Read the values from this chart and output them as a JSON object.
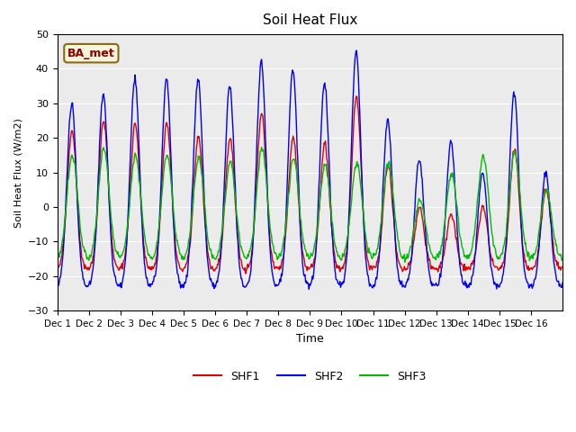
{
  "title": "Soil Heat Flux",
  "ylabel": "Soil Heat Flux (W/m2)",
  "xlabel": "Time",
  "ylim": [
    -30,
    50
  ],
  "yticks": [
    -30,
    -20,
    -10,
    0,
    10,
    20,
    30,
    40,
    50
  ],
  "xtick_labels": [
    "Dec 1",
    "Dec 2",
    "Dec 3",
    "Dec 4",
    "Dec 5",
    "Dec 6",
    "Dec 7",
    "Dec 8",
    "Dec 9",
    "Dec 10",
    "Dec 11",
    "Dec 12",
    "Dec 13",
    "Dec 14",
    "Dec 15",
    "Dec 16"
  ],
  "xtick_positions": [
    0,
    1,
    2,
    3,
    4,
    5,
    6,
    7,
    8,
    9,
    10,
    11,
    12,
    13,
    14,
    15
  ],
  "line_colors": {
    "SHF1": "#dd0000",
    "SHF2": "#0000ee",
    "SHF3": "#00bb00"
  },
  "line_width": 1.0,
  "bg_color": "#ebebeb",
  "annotation_text": "BA_met",
  "annotation_bg": "#f5f5dc",
  "annotation_border": "#8b6914",
  "annotation_text_color": "#8b0000",
  "n_days": 16,
  "pts_per_day": 48,
  "peak_scales_shf2": [
    30,
    33,
    37,
    37,
    37,
    35,
    42,
    40,
    36,
    45,
    25,
    14,
    19,
    10,
    33,
    10
  ],
  "peak_scales_shf1": [
    22,
    25,
    24,
    24,
    20,
    20,
    27,
    20,
    18,
    32,
    12,
    0,
    -2,
    0,
    17,
    5
  ],
  "peak_scales_shf3": [
    15,
    17,
    15,
    15,
    14,
    13,
    17,
    14,
    12,
    13,
    13,
    2,
    10,
    15,
    16,
    5
  ]
}
